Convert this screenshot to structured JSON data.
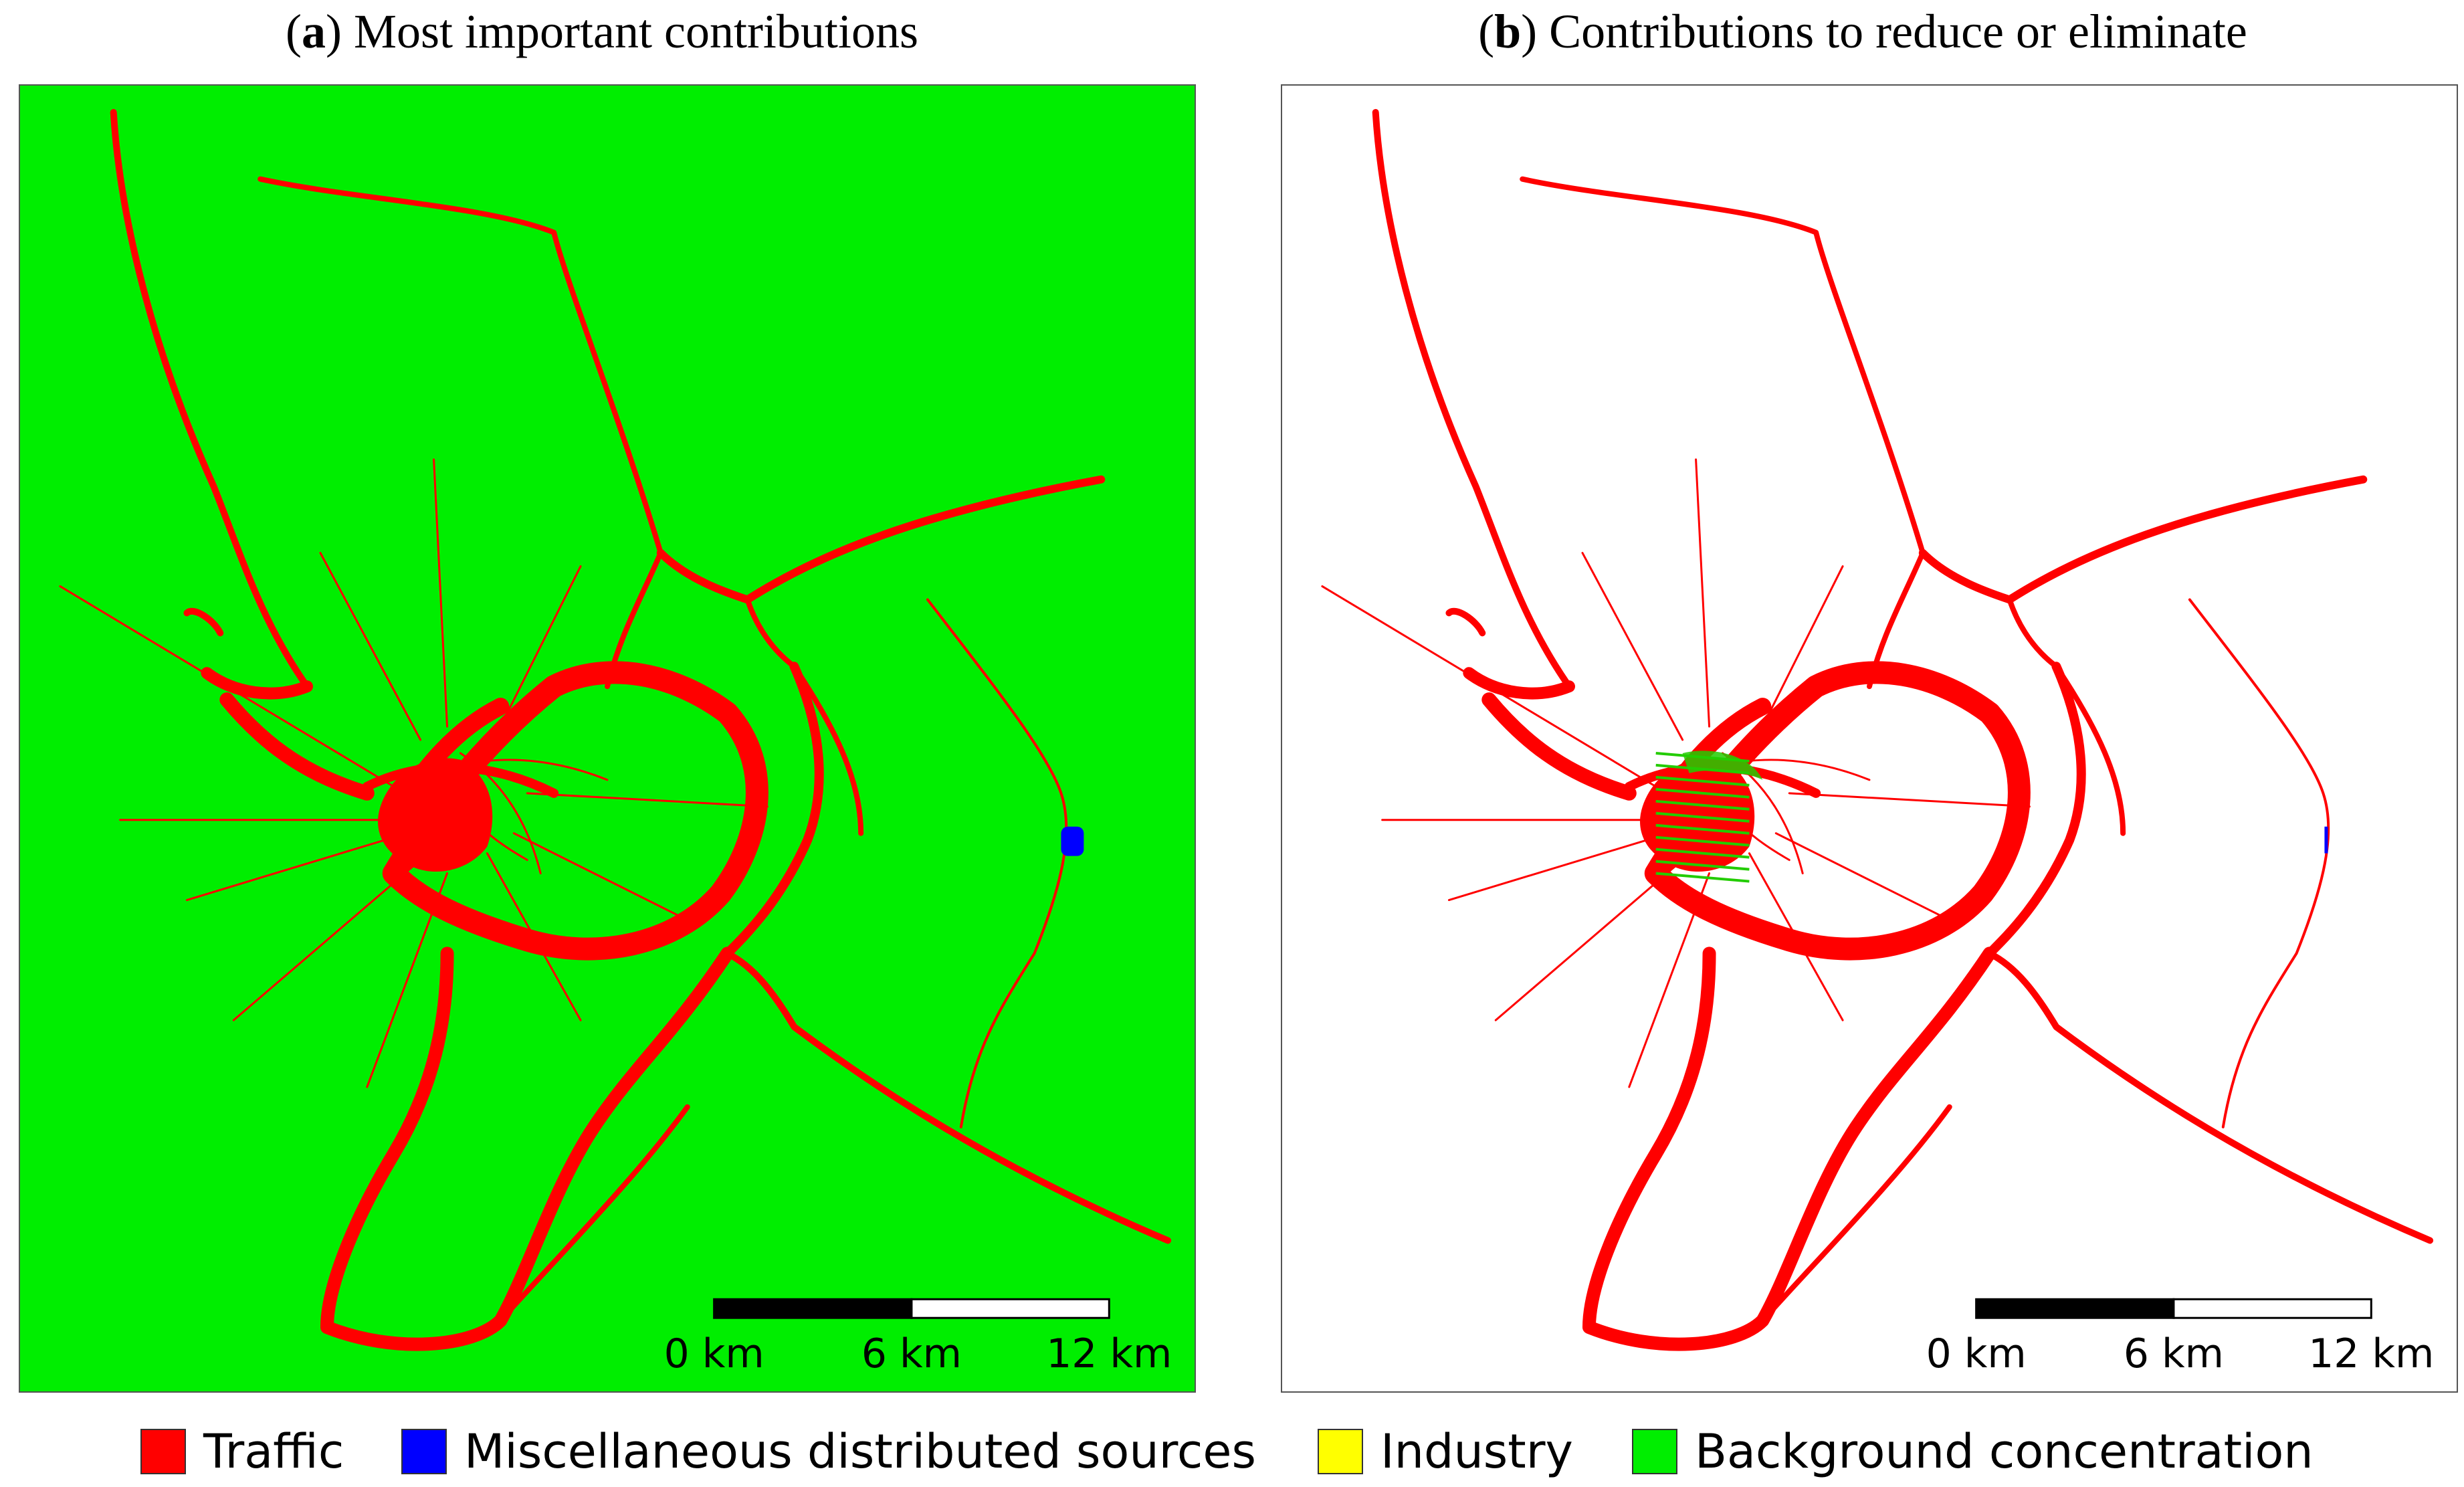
{
  "panels": [
    {
      "letter": "a",
      "title": " Most important contributions",
      "background": "#00ee00",
      "road_color": "#ff0000",
      "core_overlay": null,
      "misc_source_visible": true,
      "scale_bar": {
        "ticks": [
          "0 km",
          "6 km",
          "12 km"
        ]
      }
    },
    {
      "letter": "b",
      "title": " Contributions to reduce or eliminate",
      "background": "#ffffff",
      "road_color": "#ff0000",
      "core_overlay": "#22cc00",
      "misc_source_visible": true,
      "scale_bar": {
        "ticks": [
          "0 km",
          "6 km",
          "12 km"
        ]
      }
    }
  ],
  "legend": [
    {
      "label": "Traffic",
      "color": "#ff0000"
    },
    {
      "label": "Miscellaneous distributed sources",
      "color": "#0000ff"
    },
    {
      "label": "Industry",
      "color": "#ffff00"
    },
    {
      "label": "Background concentration",
      "color": "#00ee00"
    }
  ]
}
